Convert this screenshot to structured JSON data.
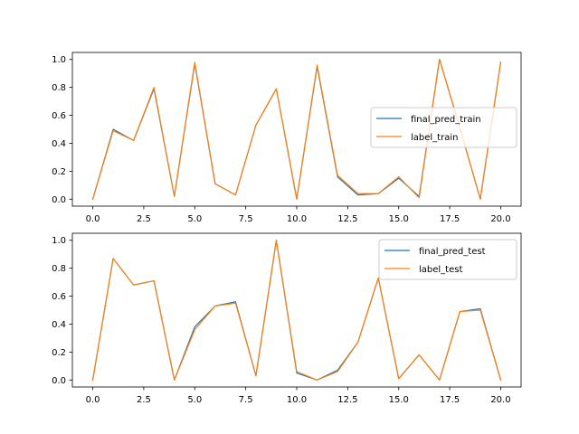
{
  "chart_data": [
    {
      "type": "line",
      "xlim": [
        -1,
        21
      ],
      "ylim": [
        -0.05,
        1.05
      ],
      "xticks": [
        0.0,
        2.5,
        5.0,
        7.5,
        10.0,
        12.5,
        15.0,
        17.5,
        20.0
      ],
      "xtick_labels": [
        "0.0",
        "2.5",
        "5.0",
        "7.5",
        "10.0",
        "12.5",
        "15.0",
        "17.5",
        "20.0"
      ],
      "yticks": [
        0.0,
        0.2,
        0.4,
        0.6,
        0.8,
        1.0
      ],
      "ytick_labels": [
        "0.0",
        "0.2",
        "0.4",
        "0.6",
        "0.8",
        "1.0"
      ],
      "grid": false,
      "legend_position": "center-right",
      "x": [
        0,
        1,
        2,
        3,
        4,
        5,
        6,
        7,
        8,
        9,
        10,
        11,
        12,
        13,
        14,
        15,
        16,
        17,
        18,
        19,
        20
      ],
      "series": [
        {
          "name": "final_pred_train",
          "color": "#1f77b4",
          "values": [
            0.0,
            0.5,
            0.42,
            0.79,
            0.02,
            0.97,
            0.11,
            0.03,
            0.53,
            0.79,
            0.0,
            0.95,
            0.16,
            0.03,
            0.04,
            0.15,
            0.02,
            1.0,
            0.51,
            0.0,
            0.98
          ]
        },
        {
          "name": "label_train",
          "color": "#ff7f0e",
          "values": [
            0.0,
            0.49,
            0.42,
            0.8,
            0.02,
            0.98,
            0.11,
            0.03,
            0.53,
            0.79,
            0.0,
            0.96,
            0.17,
            0.04,
            0.04,
            0.16,
            0.01,
            1.0,
            0.51,
            0.0,
            0.98
          ]
        }
      ]
    },
    {
      "type": "line",
      "xlim": [
        -1,
        21
      ],
      "ylim": [
        -0.05,
        1.05
      ],
      "xticks": [
        0.0,
        2.5,
        5.0,
        7.5,
        10.0,
        12.5,
        15.0,
        17.5,
        20.0
      ],
      "xtick_labels": [
        "0.0",
        "2.5",
        "5.0",
        "7.5",
        "10.0",
        "12.5",
        "15.0",
        "17.5",
        "20.0"
      ],
      "yticks": [
        0.0,
        0.2,
        0.4,
        0.6,
        0.8,
        1.0
      ],
      "ytick_labels": [
        "0.0",
        "0.2",
        "0.4",
        "0.6",
        "0.8",
        "1.0"
      ],
      "grid": false,
      "legend_position": "upper-right",
      "x": [
        0,
        1,
        2,
        3,
        4,
        5,
        6,
        7,
        8,
        9,
        10,
        11,
        12,
        13,
        14,
        15,
        16,
        17,
        18,
        19,
        20
      ],
      "series": [
        {
          "name": "final_pred_test",
          "color": "#1f77b4",
          "values": [
            0.0,
            0.87,
            0.68,
            0.71,
            0.0,
            0.38,
            0.53,
            0.56,
            0.03,
            1.0,
            0.05,
            0.0,
            0.07,
            0.27,
            0.73,
            0.01,
            0.18,
            0.0,
            0.49,
            0.51,
            0.0
          ]
        },
        {
          "name": "label_test",
          "color": "#ff7f0e",
          "values": [
            0.0,
            0.87,
            0.68,
            0.71,
            0.0,
            0.36,
            0.53,
            0.55,
            0.03,
            1.0,
            0.06,
            0.0,
            0.06,
            0.27,
            0.73,
            0.01,
            0.18,
            0.0,
            0.49,
            0.5,
            0.0
          ]
        }
      ]
    }
  ]
}
